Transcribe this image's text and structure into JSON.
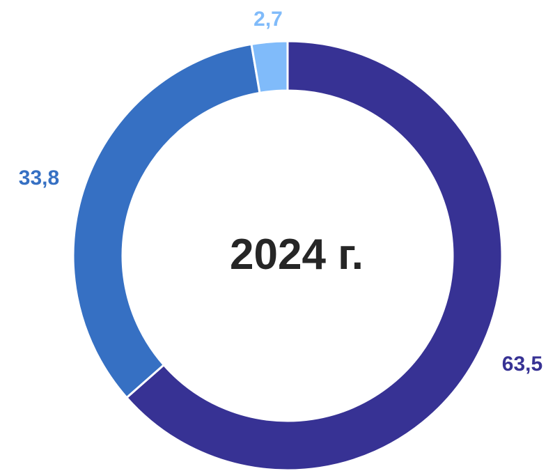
{
  "chart_data": {
    "type": "pie",
    "variant": "donut",
    "center_label": "2024 г.",
    "slices": [
      {
        "label": "63,5",
        "value": 63.5,
        "color": "#373294"
      },
      {
        "label": "33,8",
        "value": 33.8,
        "color": "#3670C3"
      },
      {
        "label": "2,7",
        "value": 2.7,
        "color": "#80BBFA"
      }
    ],
    "start_angle_deg": 0,
    "direction": "clockwise",
    "legend": "none"
  }
}
